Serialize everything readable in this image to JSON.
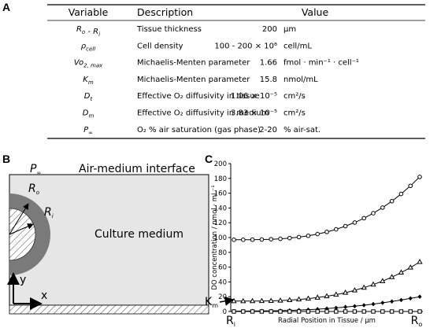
{
  "panel_labels": [
    "A",
    "B",
    "C"
  ],
  "table": {
    "header": [
      "Variable",
      "Description",
      "Value"
    ],
    "rows": [
      {
        "variable": [
          [
            "R",
            "o"
          ],
          [
            " - R",
            "i"
          ]
        ],
        "description": "Tissue thickness",
        "value": "200",
        "unit": "µm"
      },
      {
        "variable": [
          [
            "ρ",
            "cell"
          ]
        ],
        "description": "Cell density",
        "value": "100 - 200 × 10⁶",
        "unit": "cell/mL"
      },
      {
        "variable": [
          [
            "Vo",
            "2, max"
          ]
        ],
        "description": "Michaelis-Menten parameter",
        "value": "1.66",
        "unit": "fmol · min⁻¹ · cell⁻¹"
      },
      {
        "variable": [
          [
            "K",
            "m"
          ]
        ],
        "description": "Michaelis-Menten parameter",
        "value": "15.8",
        "unit": "nmol/mL"
      },
      {
        "variable": [
          [
            "D",
            "t"
          ]
        ],
        "description": "Effective O₂ diffusivity in tissue",
        "value": "1.06 × 10⁻⁵",
        "unit": "cm²/s"
      },
      {
        "variable": [
          [
            "D",
            "m"
          ]
        ],
        "description": "Effective O₂ diffusivity in medium",
        "value": "3.83 × 10⁻⁵",
        "unit": "cm²/s"
      },
      {
        "variable": [
          [
            "P",
            "∞"
          ]
        ],
        "description": "O₂ % air saturation (gas phase)",
        "value": "2-20",
        "unit": "% air-sat."
      }
    ]
  },
  "diagram": {
    "p_inf": [
      "P",
      "∞"
    ],
    "interface": "Air-medium interface",
    "medium": "Culture medium",
    "r_o": [
      "R",
      "o"
    ],
    "r_i": [
      "R",
      "i"
    ],
    "y_axis": "y",
    "x_axis": "x"
  },
  "chart_data": {
    "type": "line",
    "y_label": "DO concentration / nmol · mL⁻¹",
    "x_label": "Radial Position in Tissue / µm",
    "annotation": [
      "K",
      "m"
    ],
    "categories": [
      [
        "R",
        "i"
      ],
      null,
      null,
      null,
      null,
      null,
      null,
      null,
      null,
      null,
      null,
      null,
      null,
      null,
      null,
      null,
      null,
      null,
      null,
      null,
      [
        "R",
        "o"
      ]
    ],
    "ylim": [
      0,
      200
    ],
    "yticks": [
      0,
      20,
      40,
      60,
      80,
      100,
      120,
      140,
      160,
      180,
      200
    ],
    "series": [
      {
        "color": "#000000",
        "marker": "circle",
        "values": [
          97,
          97,
          97.1,
          97.3,
          97.7,
          98.3,
          99.3,
          100.6,
          102.4,
          104.7,
          107.6,
          111.1,
          115.4,
          120.3,
          126.2,
          132.9,
          140.5,
          149.2,
          159,
          169.9,
          182
        ]
      },
      {
        "color": "#000000",
        "marker": "triangle",
        "values": [
          14,
          14,
          14.1,
          14.2,
          14.4,
          14.8,
          15.4,
          16.3,
          17.4,
          18.8,
          20.6,
          22.8,
          25.4,
          28.6,
          32.2,
          36.4,
          41.1,
          46.5,
          52.6,
          59.4,
          67
        ]
      },
      {
        "color": "#000000",
        "marker": "diamond",
        "values": [
          0.5,
          0.5,
          0.6,
          0.7,
          0.8,
          1.1,
          1.5,
          1.9,
          2.5,
          3.1,
          3.9,
          4.9,
          6,
          7.1,
          8.5,
          10,
          11.7,
          13.5,
          15.5,
          17.7,
          20
        ]
      },
      {
        "color": "#000000",
        "marker": "square",
        "values": [
          0,
          0,
          0,
          0,
          0,
          0,
          0,
          0,
          0,
          0,
          0,
          0,
          0,
          0,
          0,
          0,
          0,
          0,
          0,
          0,
          0
        ]
      }
    ]
  }
}
